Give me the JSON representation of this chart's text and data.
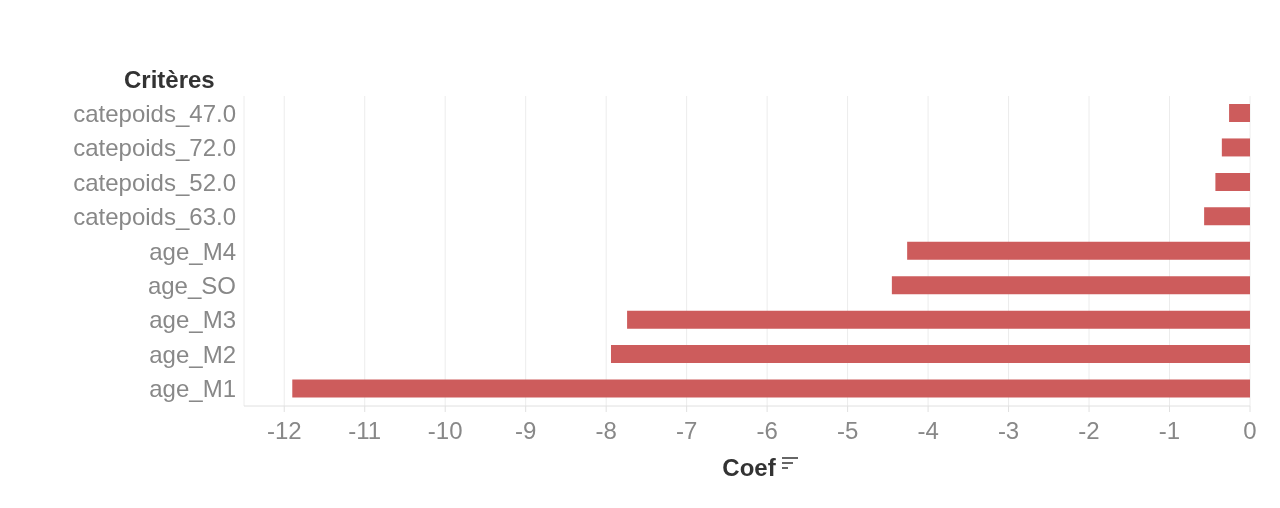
{
  "chart_data": {
    "type": "bar",
    "orientation": "horizontal",
    "xlabel": "Coef",
    "ylabel": "Critères",
    "categories": [
      "catepoids_47.0",
      "catepoids_72.0",
      "catepoids_52.0",
      "catepoids_63.0",
      "age_M4",
      "age_SO",
      "age_M3",
      "age_M2",
      "age_M1"
    ],
    "values": [
      -0.26,
      -0.35,
      -0.43,
      -0.57,
      -4.26,
      -4.45,
      -7.74,
      -7.94,
      -11.9
    ],
    "color": "#cd5c5c",
    "xlim": [
      -12.5,
      0
    ],
    "xticks": [
      -12,
      -11,
      -10,
      -9,
      -8,
      -7,
      -6,
      -5,
      -4,
      -3,
      -2,
      -1,
      0
    ],
    "grid": "x"
  }
}
